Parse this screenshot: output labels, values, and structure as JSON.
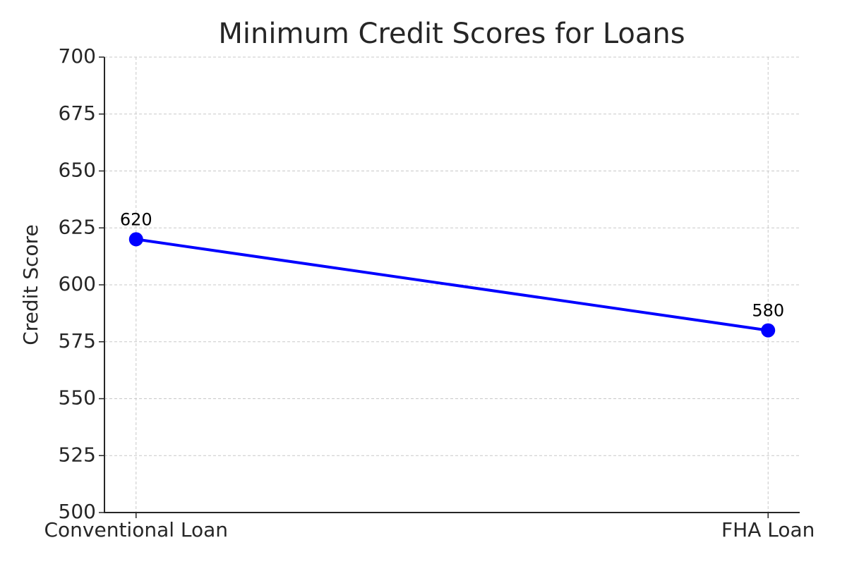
{
  "chart_data": {
    "type": "line",
    "title": "Minimum Credit Scores for Loans",
    "y_label": "Credit Score",
    "categories": [
      "Conventional Loan",
      "FHA Loan"
    ],
    "values": [
      620,
      580
    ],
    "color": "#0000ff",
    "ylim": [
      500,
      700
    ],
    "yticks": [
      500,
      525,
      550,
      575,
      600,
      625,
      650,
      675,
      700
    ],
    "grid": true
  }
}
